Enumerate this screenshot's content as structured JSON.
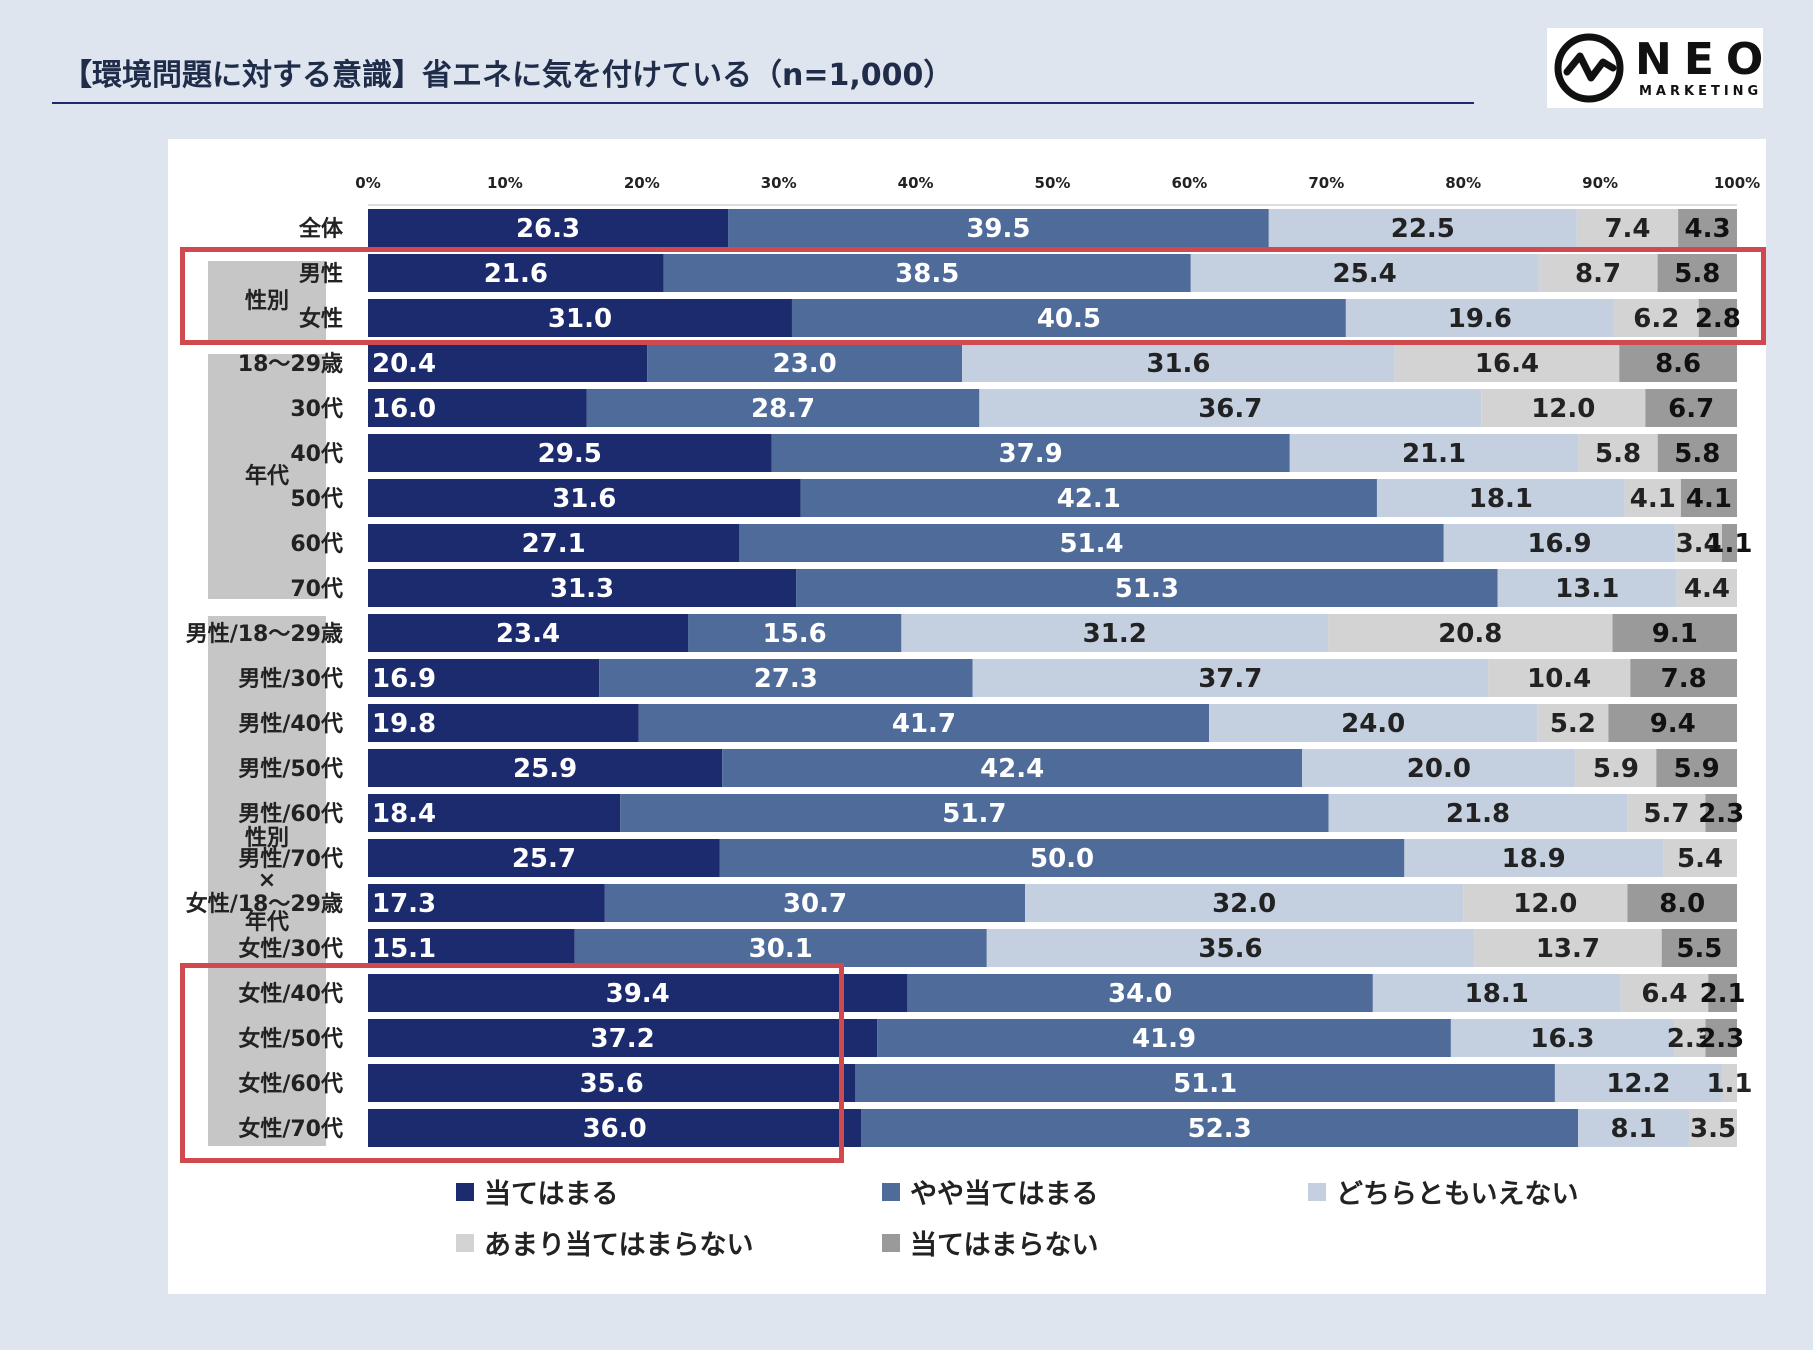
{
  "header": {
    "title": "【環境問題に対する意識】省エネに気を付けている（n=1,000）"
  },
  "logo": {
    "word": "NEO",
    "sub": "MARKETING"
  },
  "groups": [
    {
      "label": "性別"
    },
    {
      "label": "年代"
    },
    {
      "label": "性別\n×\n年代"
    }
  ],
  "chart_data": {
    "type": "bar",
    "orientation": "horizontal-stacked-100",
    "title": "【環境問題に対する意識】省エネに気を付けている（n=1,000）",
    "x_ticks": [
      "0%",
      "10%",
      "20%",
      "30%",
      "40%",
      "50%",
      "60%",
      "70%",
      "80%",
      "90%",
      "100%"
    ],
    "xlim": [
      0,
      100
    ],
    "legend_position": "bottom",
    "series": [
      {
        "name": "当てはまる",
        "color": "#1c2a6e",
        "text_color": "#ffffff"
      },
      {
        "name": "やや当てはまる",
        "color": "#4e6b9a",
        "text_color": "#ffffff"
      },
      {
        "name": "どちらともいえない",
        "color": "#c4d0e0",
        "text_color": "#222222"
      },
      {
        "name": "あまり当てはまらない",
        "color": "#d3d3d3",
        "text_color": "#222222"
      },
      {
        "name": "当てはまらない",
        "color": "#9a9a9a",
        "text_color": "#111111"
      }
    ],
    "categories": [
      "全体",
      "男性",
      "女性",
      "18〜29歳",
      "30代",
      "40代",
      "50代",
      "60代",
      "70代",
      "男性/18〜29歳",
      "男性/30代",
      "男性/40代",
      "男性/50代",
      "男性/60代",
      "男性/70代",
      "女性/18〜29歳",
      "女性/30代",
      "女性/40代",
      "女性/50代",
      "女性/60代",
      "女性/70代"
    ],
    "values": [
      [
        26.3,
        39.5,
        22.5,
        7.4,
        4.3
      ],
      [
        21.6,
        38.5,
        25.4,
        8.7,
        5.8
      ],
      [
        31.0,
        40.5,
        19.6,
        6.2,
        2.8
      ],
      [
        20.4,
        23.0,
        31.6,
        16.4,
        8.6
      ],
      [
        16.0,
        28.7,
        36.7,
        12.0,
        6.7
      ],
      [
        29.5,
        37.9,
        21.1,
        5.8,
        5.8
      ],
      [
        31.6,
        42.1,
        18.1,
        4.1,
        4.1
      ],
      [
        27.1,
        51.4,
        16.9,
        3.4,
        1.1
      ],
      [
        31.3,
        51.3,
        13.1,
        4.4,
        0.0
      ],
      [
        23.4,
        15.6,
        31.2,
        20.8,
        9.1
      ],
      [
        16.9,
        27.3,
        37.7,
        10.4,
        7.8
      ],
      [
        19.8,
        41.7,
        24.0,
        5.2,
        9.4
      ],
      [
        25.9,
        42.4,
        20.0,
        5.9,
        5.9
      ],
      [
        18.4,
        51.7,
        21.8,
        5.7,
        2.3
      ],
      [
        25.7,
        50.0,
        18.9,
        5.4,
        0.0
      ],
      [
        17.3,
        30.7,
        32.0,
        12.0,
        8.0
      ],
      [
        15.1,
        30.1,
        35.6,
        13.7,
        5.5
      ],
      [
        39.4,
        34.0,
        18.1,
        6.4,
        2.1
      ],
      [
        37.2,
        41.9,
        16.3,
        2.3,
        2.3
      ],
      [
        35.6,
        51.1,
        12.2,
        1.1,
        0.0
      ],
      [
        36.0,
        52.3,
        8.1,
        3.5,
        0.0
      ]
    ],
    "value_labels": [
      [
        "26.3",
        "39.5",
        "22.5",
        "7.4",
        "4.3"
      ],
      [
        "21.6",
        "38.5",
        "25.4",
        "8.7",
        "5.8"
      ],
      [
        "31.0",
        "40.5",
        "19.6",
        "6.2",
        "2.8"
      ],
      [
        "20.4",
        "23.0",
        "31.6",
        "16.4",
        "8.6"
      ],
      [
        "16.0",
        "28.7",
        "36.7",
        "12.0",
        "6.7"
      ],
      [
        "29.5",
        "37.9",
        "21.1",
        "5.8",
        "5.8"
      ],
      [
        "31.6",
        "42.1",
        "18.1",
        "4.1",
        "4.1"
      ],
      [
        "27.1",
        "51.4",
        "16.9",
        "3.4",
        "1.1"
      ],
      [
        "31.3",
        "51.3",
        "13.1",
        "4.4",
        ""
      ],
      [
        "23.4",
        "15.6",
        "31.2",
        "20.8",
        "9.1"
      ],
      [
        "16.9",
        "27.3",
        "37.7",
        "10.4",
        "7.8"
      ],
      [
        "19.8",
        "41.7",
        "24.0",
        "5.2",
        "9.4"
      ],
      [
        "25.9",
        "42.4",
        "20.0",
        "5.9",
        "5.9"
      ],
      [
        "18.4",
        "51.7",
        "21.8",
        "5.7",
        "2.3"
      ],
      [
        "25.7",
        "50.0",
        "18.9",
        "5.4",
        ""
      ],
      [
        "17.3",
        "30.7",
        "32.0",
        "12.0",
        "8.0"
      ],
      [
        "15.1",
        "30.1",
        "35.6",
        "13.7",
        "5.5"
      ],
      [
        "39.4",
        "34.0",
        "18.1",
        "6.4",
        "2.1"
      ],
      [
        "37.2",
        "41.9",
        "16.3",
        "2.3",
        "2.3"
      ],
      [
        "35.6",
        "51.1",
        "12.2",
        "1.1",
        ""
      ],
      [
        "36.0",
        "52.3",
        "8.1",
        "3.5",
        ""
      ]
    ],
    "highlighted_groups": [
      "男性, 女性",
      "女性/40代 – 女性/70代 (当てはまる)"
    ]
  }
}
